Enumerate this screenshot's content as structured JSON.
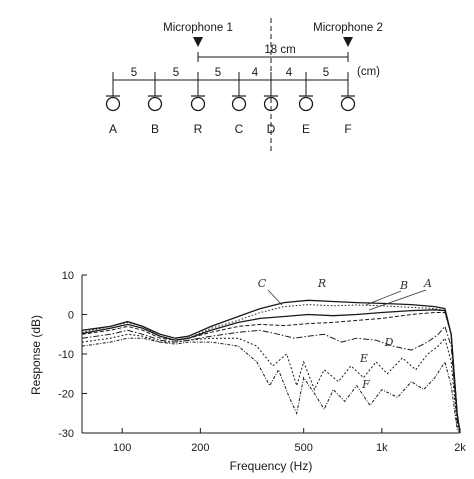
{
  "diagram": {
    "mic1_label": "Microphone 1",
    "mic2_label": "Microphone 2",
    "total_distance": "18 cm",
    "unit": "(cm)",
    "spacings": [
      "5",
      "5",
      "5",
      "4",
      "4",
      "5"
    ],
    "positions": [
      "A",
      "B",
      "R",
      "C",
      "D",
      "E",
      "F"
    ]
  },
  "chart_data": {
    "type": "line",
    "xlabel": "Frequency (Hz)",
    "ylabel": "Response (dB)",
    "xscale": "log",
    "xlim": [
      70,
      2000
    ],
    "ylim": [
      -30,
      10
    ],
    "x_ticks": [
      100,
      200,
      500,
      1000,
      2000
    ],
    "x_tick_labels": [
      "100",
      "200",
      "500",
      "1k",
      "2k"
    ],
    "y_ticks": [
      10,
      0,
      -10,
      -20,
      -30
    ],
    "y_tick_labels": [
      "10",
      "0",
      "-10",
      "-20",
      "-30"
    ],
    "grid": false,
    "series": [
      {
        "name": "R",
        "dash": "none",
        "points": [
          [
            70,
            -4
          ],
          [
            90,
            -3
          ],
          [
            105,
            -1.8
          ],
          [
            120,
            -3
          ],
          [
            140,
            -5
          ],
          [
            160,
            -6
          ],
          [
            180,
            -5.5
          ],
          [
            220,
            -3
          ],
          [
            280,
            -0.5
          ],
          [
            340,
            1.5
          ],
          [
            420,
            3
          ],
          [
            520,
            3.6
          ],
          [
            650,
            3.3
          ],
          [
            800,
            3
          ],
          [
            1000,
            2.8
          ],
          [
            1300,
            2.5
          ],
          [
            1600,
            2
          ],
          [
            1750,
            1.5
          ],
          [
            1850,
            -5
          ],
          [
            1950,
            -25
          ],
          [
            2000,
            -30
          ]
        ]
      },
      {
        "name": "C",
        "dash": "1.5 2",
        "points": [
          [
            70,
            -4.5
          ],
          [
            90,
            -3
          ],
          [
            105,
            -2
          ],
          [
            120,
            -3
          ],
          [
            140,
            -5.5
          ],
          [
            160,
            -6.5
          ],
          [
            180,
            -6
          ],
          [
            220,
            -3.5
          ],
          [
            280,
            -1.5
          ],
          [
            340,
            0.5
          ],
          [
            420,
            2
          ],
          [
            520,
            2.5
          ],
          [
            650,
            2.2
          ],
          [
            800,
            2.4
          ],
          [
            1000,
            2.2
          ],
          [
            1300,
            1.8
          ],
          [
            1600,
            1.5
          ],
          [
            1750,
            1
          ],
          [
            1850,
            -5
          ],
          [
            1950,
            -25
          ],
          [
            2000,
            -30
          ]
        ]
      },
      {
        "name": "B",
        "dash": "none",
        "points": [
          [
            70,
            -4.8
          ],
          [
            90,
            -3.5
          ],
          [
            105,
            -2.5
          ],
          [
            120,
            -3.5
          ],
          [
            140,
            -5.5
          ],
          [
            160,
            -6.5
          ],
          [
            180,
            -6
          ],
          [
            220,
            -4
          ],
          [
            280,
            -2
          ],
          [
            340,
            -1
          ],
          [
            420,
            -0.5
          ],
          [
            520,
            0
          ],
          [
            650,
            -0.3
          ],
          [
            800,
            0
          ],
          [
            1000,
            0.5
          ],
          [
            1300,
            1
          ],
          [
            1600,
            1.2
          ],
          [
            1750,
            1
          ],
          [
            1850,
            -5
          ],
          [
            1950,
            -25
          ],
          [
            2000,
            -30
          ]
        ]
      },
      {
        "name": "A",
        "dash": "4 2",
        "points": [
          [
            70,
            -5
          ],
          [
            90,
            -4
          ],
          [
            105,
            -3
          ],
          [
            120,
            -4
          ],
          [
            140,
            -6
          ],
          [
            160,
            -6.5
          ],
          [
            180,
            -6
          ],
          [
            220,
            -4.5
          ],
          [
            280,
            -3
          ],
          [
            340,
            -2.5
          ],
          [
            420,
            -2.8
          ],
          [
            520,
            -2.3
          ],
          [
            650,
            -2
          ],
          [
            800,
            -1.5
          ],
          [
            1000,
            -1
          ],
          [
            1300,
            0
          ],
          [
            1600,
            0.5
          ],
          [
            1750,
            0.5
          ],
          [
            1850,
            -5
          ],
          [
            1950,
            -25
          ],
          [
            2000,
            -30
          ]
        ]
      },
      {
        "name": "D",
        "dash": "6 2 1.5 2",
        "points": [
          [
            70,
            -6
          ],
          [
            90,
            -5
          ],
          [
            105,
            -4
          ],
          [
            120,
            -5
          ],
          [
            140,
            -6.5
          ],
          [
            160,
            -7
          ],
          [
            180,
            -6.5
          ],
          [
            220,
            -5.5
          ],
          [
            280,
            -4.5
          ],
          [
            340,
            -4
          ],
          [
            400,
            -5
          ],
          [
            460,
            -6
          ],
          [
            520,
            -5.5
          ],
          [
            600,
            -5
          ],
          [
            700,
            -7
          ],
          [
            800,
            -6
          ],
          [
            950,
            -6.5
          ],
          [
            1100,
            -8
          ],
          [
            1300,
            -9
          ],
          [
            1500,
            -7
          ],
          [
            1650,
            -5
          ],
          [
            1750,
            -3
          ],
          [
            1850,
            -8
          ],
          [
            1950,
            -27
          ],
          [
            2000,
            -30
          ]
        ]
      },
      {
        "name": "E",
        "dash": "2 2",
        "points": [
          [
            70,
            -7
          ],
          [
            90,
            -6
          ],
          [
            105,
            -5
          ],
          [
            120,
            -5.5
          ],
          [
            140,
            -7
          ],
          [
            160,
            -7
          ],
          [
            180,
            -6.5
          ],
          [
            220,
            -6
          ],
          [
            280,
            -6
          ],
          [
            330,
            -8
          ],
          [
            380,
            -13
          ],
          [
            430,
            -10
          ],
          [
            470,
            -18
          ],
          [
            500,
            -12
          ],
          [
            550,
            -19
          ],
          [
            600,
            -14
          ],
          [
            680,
            -17
          ],
          [
            760,
            -13
          ],
          [
            850,
            -16
          ],
          [
            950,
            -12
          ],
          [
            1050,
            -15
          ],
          [
            1200,
            -11
          ],
          [
            1350,
            -14
          ],
          [
            1500,
            -10
          ],
          [
            1650,
            -8
          ],
          [
            1750,
            -6
          ],
          [
            1850,
            -12
          ],
          [
            1950,
            -28
          ],
          [
            2000,
            -30
          ]
        ]
      },
      {
        "name": "F",
        "dash": "3 1.5 1 1.5",
        "points": [
          [
            70,
            -8
          ],
          [
            90,
            -7
          ],
          [
            105,
            -6
          ],
          [
            120,
            -6
          ],
          [
            140,
            -7
          ],
          [
            160,
            -7.5
          ],
          [
            180,
            -7
          ],
          [
            220,
            -7
          ],
          [
            280,
            -8
          ],
          [
            330,
            -12
          ],
          [
            370,
            -18
          ],
          [
            400,
            -14
          ],
          [
            440,
            -21
          ],
          [
            470,
            -25
          ],
          [
            500,
            -16
          ],
          [
            550,
            -20
          ],
          [
            600,
            -24
          ],
          [
            650,
            -19
          ],
          [
            720,
            -22
          ],
          [
            800,
            -18
          ],
          [
            900,
            -23
          ],
          [
            1000,
            -19
          ],
          [
            1150,
            -21
          ],
          [
            1300,
            -17
          ],
          [
            1450,
            -19
          ],
          [
            1600,
            -16
          ],
          [
            1750,
            -12
          ],
          [
            1850,
            -18
          ],
          [
            1950,
            -29
          ],
          [
            2000,
            -30
          ]
        ]
      }
    ]
  }
}
